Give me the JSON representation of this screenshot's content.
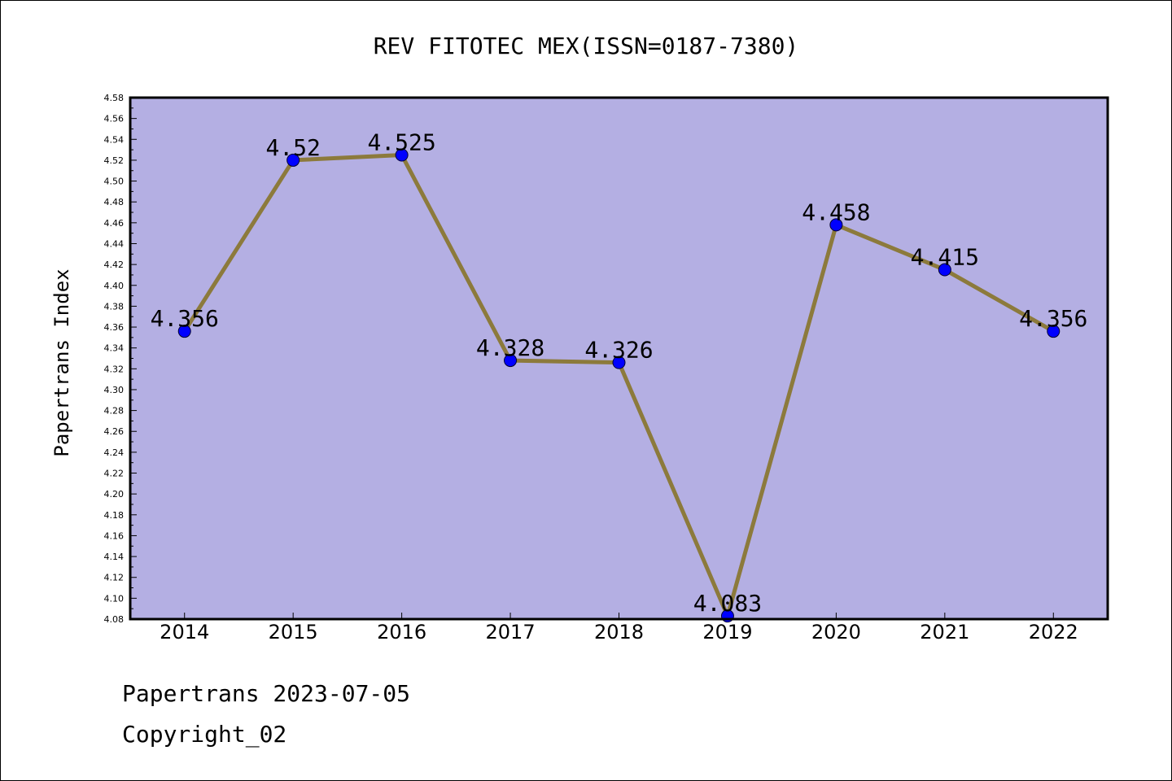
{
  "chart_data": {
    "type": "line",
    "title": "REV FITOTEC MEX(ISSN=0187-7380)",
    "xlabel": "",
    "ylabel": "Papertrans Index",
    "categories": [
      "2014",
      "2015",
      "2016",
      "2017",
      "2018",
      "2019",
      "2020",
      "2021",
      "2022"
    ],
    "values": [
      4.356,
      4.52,
      4.525,
      4.328,
      4.326,
      4.083,
      4.458,
      4.415,
      4.356
    ],
    "data_labels": [
      "4.356",
      "4.52",
      "4.525",
      "4.328",
      "4.326",
      "4.083",
      "4.458",
      "4.415",
      "4.356"
    ],
    "ylim": [
      4.08,
      4.58
    ],
    "yticks": [
      "4.08",
      "4.10",
      "4.12",
      "4.14",
      "4.16",
      "4.18",
      "4.20",
      "4.22",
      "4.24",
      "4.26",
      "4.28",
      "4.30",
      "4.32",
      "4.34",
      "4.36",
      "4.38",
      "4.40",
      "4.42",
      "4.44",
      "4.46",
      "4.48",
      "4.50",
      "4.52",
      "4.54",
      "4.56",
      "4.58"
    ],
    "grid": false,
    "legend": "none",
    "colors": {
      "background": "#b4afe3",
      "line": "#8c7a3c",
      "marker": "#0000ff"
    }
  },
  "footer": {
    "source": "Papertrans 2023-07-05",
    "copyright": "Copyright_02"
  }
}
